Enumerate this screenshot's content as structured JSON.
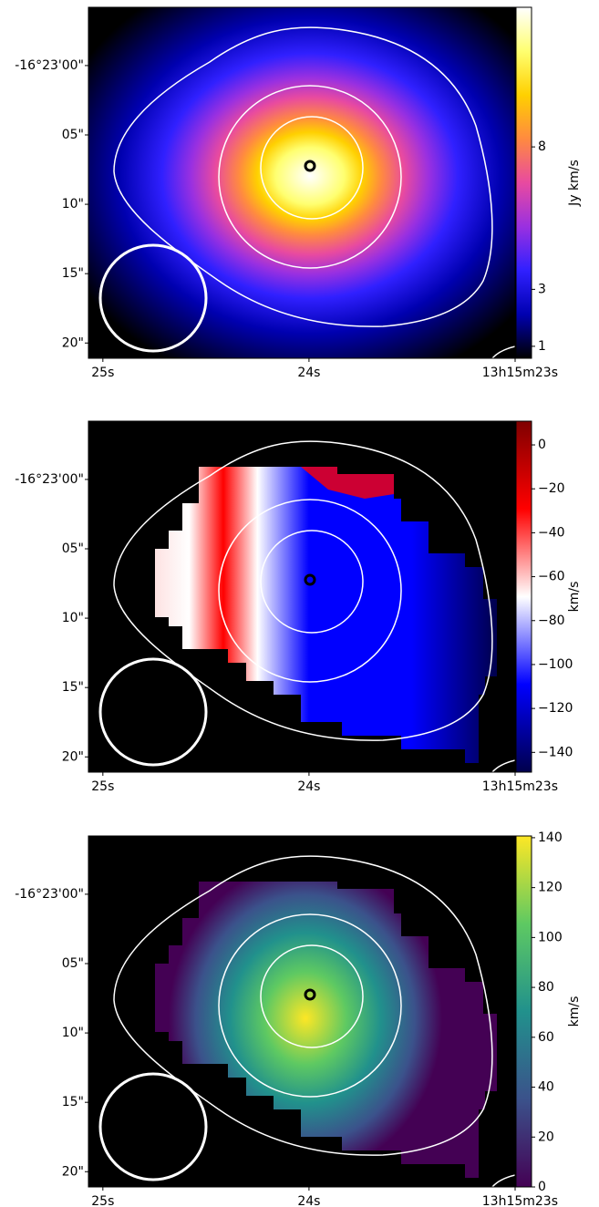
{
  "chart_data": [
    {
      "type": "image",
      "xlim": [
        25.07,
        23.0
      ],
      "xticks": [
        {
          "value": 25,
          "label": "25s"
        },
        {
          "value": 24,
          "label": "24s"
        },
        {
          "value": 23,
          "label": "13h15m23s"
        }
      ],
      "ylim": [
        -4.2,
        21.1
      ],
      "yticks": [
        {
          "value": 0,
          "label": "-16°23'00\""
        },
        {
          "value": 5,
          "label": "05\""
        },
        {
          "value": 10,
          "label": "10\""
        },
        {
          "value": 15,
          "label": "15\""
        },
        {
          "value": 20,
          "label": "20\""
        }
      ],
      "colorbar": {
        "label": "Jy km/s",
        "lim": [
          0.58,
          12.9
        ],
        "ticks": [
          1,
          3,
          8
        ],
        "colormap": [
          "#000000",
          "#0000b0",
          "#3020ff",
          "#9a30e0",
          "#e84aa0",
          "#ff8a40",
          "#ffd000",
          "#ffff70",
          "#ffffff"
        ]
      }
    },
    {
      "type": "image",
      "xlim": [
        25.07,
        23.0
      ],
      "xticks": [
        {
          "value": 25,
          "label": "25s"
        },
        {
          "value": 24,
          "label": "24s"
        },
        {
          "value": 23,
          "label": "13h15m23s"
        }
      ],
      "ylim": [
        -4.2,
        21.1
      ],
      "yticks": [
        {
          "value": 0,
          "label": "-16°23'00\""
        },
        {
          "value": 5,
          "label": "05\""
        },
        {
          "value": 10,
          "label": "10\""
        },
        {
          "value": 15,
          "label": "15\""
        },
        {
          "value": 20,
          "label": "20\""
        }
      ],
      "colorbar": {
        "label": "km/s",
        "lim": [
          -149,
          10.8
        ],
        "ticks": [
          0,
          {
            "value": -20,
            "label": "−20"
          },
          {
            "value": -40,
            "label": "−40"
          },
          {
            "value": -60,
            "label": "−60"
          },
          {
            "value": -80,
            "label": "−80"
          },
          {
            "value": -100,
            "label": "−100"
          },
          {
            "value": -120,
            "label": "−120"
          },
          {
            "value": -140,
            "label": "−140"
          }
        ],
        "colormap": [
          "#00004c",
          "#0000ff",
          "#ffffff",
          "#ff0000",
          "#7f0000"
        ]
      }
    },
    {
      "type": "image",
      "xlim": [
        25.07,
        23.0
      ],
      "xticks": [
        {
          "value": 25,
          "label": "25s"
        },
        {
          "value": 24,
          "label": "24s"
        },
        {
          "value": 23,
          "label": "13h15m23s"
        }
      ],
      "ylim": [
        -4.2,
        21.1
      ],
      "yticks": [
        {
          "value": 0,
          "label": "-16°23'00\""
        },
        {
          "value": 5,
          "label": "05\""
        },
        {
          "value": 10,
          "label": "10\""
        },
        {
          "value": 15,
          "label": "15\""
        },
        {
          "value": 20,
          "label": "20\""
        }
      ],
      "colorbar": {
        "label": "km/s",
        "lim": [
          0,
          140.7
        ],
        "ticks": [
          0,
          20,
          40,
          60,
          80,
          100,
          120,
          140
        ],
        "colormap": [
          "#440154",
          "#3b528b",
          "#21918c",
          "#5ec962",
          "#fde725"
        ]
      }
    }
  ]
}
